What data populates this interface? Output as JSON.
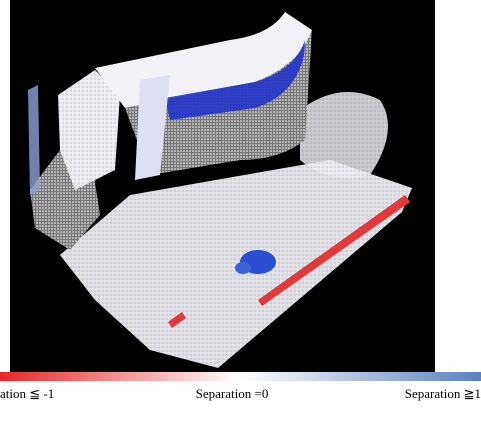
{
  "colorbar": {
    "labels": [
      "ation ≦ -1",
      "Separation =0",
      "Separation ≧1"
    ]
  }
}
